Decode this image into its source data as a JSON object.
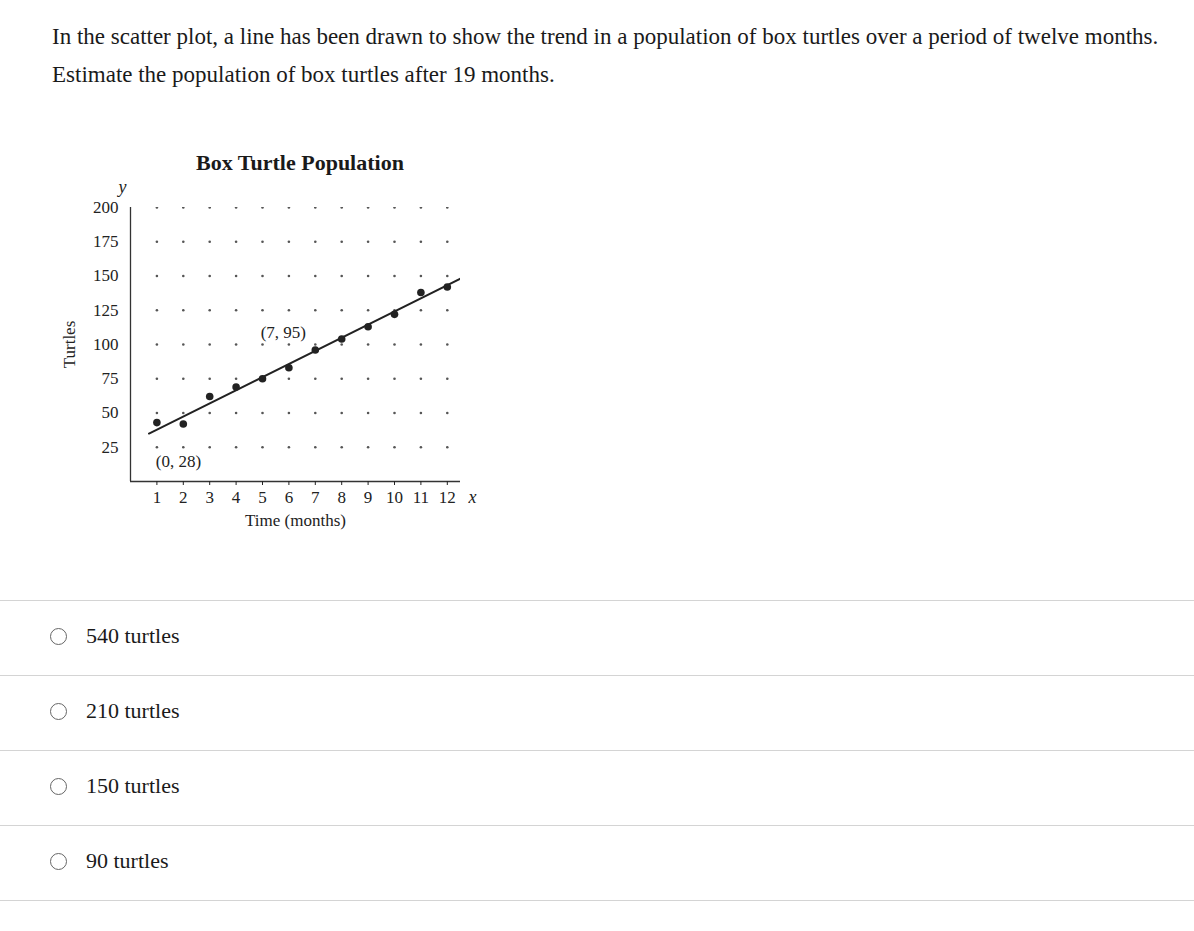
{
  "question": "In the scatter plot, a line has been drawn to show the trend in a population of box turtles over a period of twelve months. Estimate the population of box turtles after 19 months.",
  "choices": [
    "540 turtles",
    "210 turtles",
    "150 turtles",
    "90 turtles"
  ],
  "chart_data": {
    "type": "scatter",
    "title": "Box Turtle Population",
    "x_label": "Time (months)",
    "y_label": "Turtles",
    "axis_symbols": {
      "x": "x",
      "y": "y"
    },
    "x": [
      1,
      2,
      3,
      4,
      5,
      6,
      7,
      8,
      9,
      10,
      11,
      12
    ],
    "values": [
      43,
      42,
      62,
      69,
      75,
      83,
      96,
      104,
      113,
      122,
      138,
      142
    ],
    "color": "#222222",
    "marker": "circle",
    "trend_line": {
      "x": [
        0.7,
        12.5
      ],
      "y": [
        35,
        148
      ],
      "color": "#222222"
    },
    "annotations": [
      {
        "text": "(0, 28)",
        "x": 0,
        "y": 28
      },
      {
        "text": "(7, 95)",
        "x": 7,
        "y": 95
      }
    ],
    "xlim": [
      0,
      12.5
    ],
    "ylim": [
      0,
      200
    ],
    "xticks": [
      1,
      2,
      3,
      4,
      5,
      6,
      7,
      8,
      9,
      10,
      11,
      12
    ],
    "yticks": [
      25,
      50,
      75,
      100,
      125,
      150,
      175,
      200
    ],
    "grid": true
  }
}
